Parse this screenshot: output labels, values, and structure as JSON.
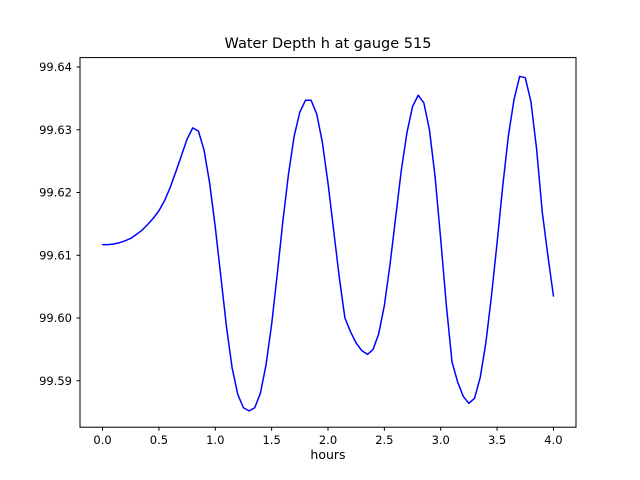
{
  "figure": {
    "title": "Water Depth h at gauge 515",
    "xlabel": "hours"
  },
  "chart_data": {
    "type": "line",
    "title": "Water Depth h at gauge 515",
    "xlabel": "hours",
    "ylabel": "",
    "line_color": "#0000ff",
    "background_color": "#ffffff",
    "axes_color": "#000000",
    "grid": false,
    "legend": null,
    "xlim": [
      -0.2,
      4.2
    ],
    "ylim": [
      99.5826,
      99.6415
    ],
    "xticks": [
      0.0,
      0.5,
      1.0,
      1.5,
      2.0,
      2.5,
      3.0,
      3.5,
      4.0
    ],
    "xtick_labels": [
      "0.0",
      "0.5",
      "1.0",
      "1.5",
      "2.0",
      "2.5",
      "3.0",
      "3.5",
      "4.0"
    ],
    "yticks": [
      99.59,
      99.6,
      99.61,
      99.62,
      99.63,
      99.64
    ],
    "ytick_labels": [
      "99.59",
      "99.60",
      "99.61",
      "99.62",
      "99.63",
      "99.64"
    ],
    "series": [
      {
        "name": "water-depth-h",
        "x": [
          0,
          0.05,
          0.1,
          0.15,
          0.2,
          0.25,
          0.3,
          0.35,
          0.4,
          0.45,
          0.5,
          0.55,
          0.6,
          0.65,
          0.7,
          0.75,
          0.8,
          0.85,
          0.9,
          0.95,
          1,
          1.05,
          1.1,
          1.15,
          1.2,
          1.25,
          1.3,
          1.35,
          1.4,
          1.45,
          1.5,
          1.55,
          1.6,
          1.65,
          1.7,
          1.75,
          1.8,
          1.85,
          1.9,
          1.95,
          2,
          2.05,
          2.1,
          2.15,
          2.2,
          2.25,
          2.3,
          2.35,
          2.4,
          2.45,
          2.5,
          2.55,
          2.6,
          2.65,
          2.7,
          2.75,
          2.8,
          2.85,
          2.9,
          2.95,
          3,
          3.05,
          3.1,
          3.15,
          3.2,
          3.25,
          3.3,
          3.35,
          3.4,
          3.45,
          3.5,
          3.55,
          3.6,
          3.65,
          3.7,
          3.75,
          3.8,
          3.85,
          3.9,
          3.95,
          4
        ],
        "y": [
          99.6117,
          99.6117,
          99.6118,
          99.612,
          99.6123,
          99.6127,
          99.6133,
          99.614,
          99.6149,
          99.6159,
          99.6171,
          99.6187,
          99.6208,
          99.6233,
          99.6259,
          99.6285,
          99.6303,
          99.6298,
          99.6268,
          99.6215,
          99.6145,
          99.6065,
          99.5985,
          99.592,
          99.5878,
          99.5857,
          99.5852,
          99.5857,
          99.588,
          99.5925,
          99.599,
          99.607,
          99.6155,
          99.623,
          99.629,
          99.6328,
          99.6347,
          99.6347,
          99.6325,
          99.628,
          99.6215,
          99.614,
          99.6065,
          99.6,
          99.5978,
          99.596,
          99.5948,
          99.5942,
          99.595,
          99.5975,
          99.602,
          99.6085,
          99.616,
          99.6235,
          99.6295,
          99.6337,
          99.6355,
          99.6343,
          99.63,
          99.6225,
          99.6125,
          99.602,
          99.593,
          99.5898,
          99.5875,
          99.5864,
          99.5872,
          99.5905,
          99.596,
          99.6035,
          99.612,
          99.621,
          99.629,
          99.6348,
          99.6385,
          99.6383,
          99.6345,
          99.627,
          99.617,
          99.61,
          99.6035
        ]
      }
    ]
  }
}
